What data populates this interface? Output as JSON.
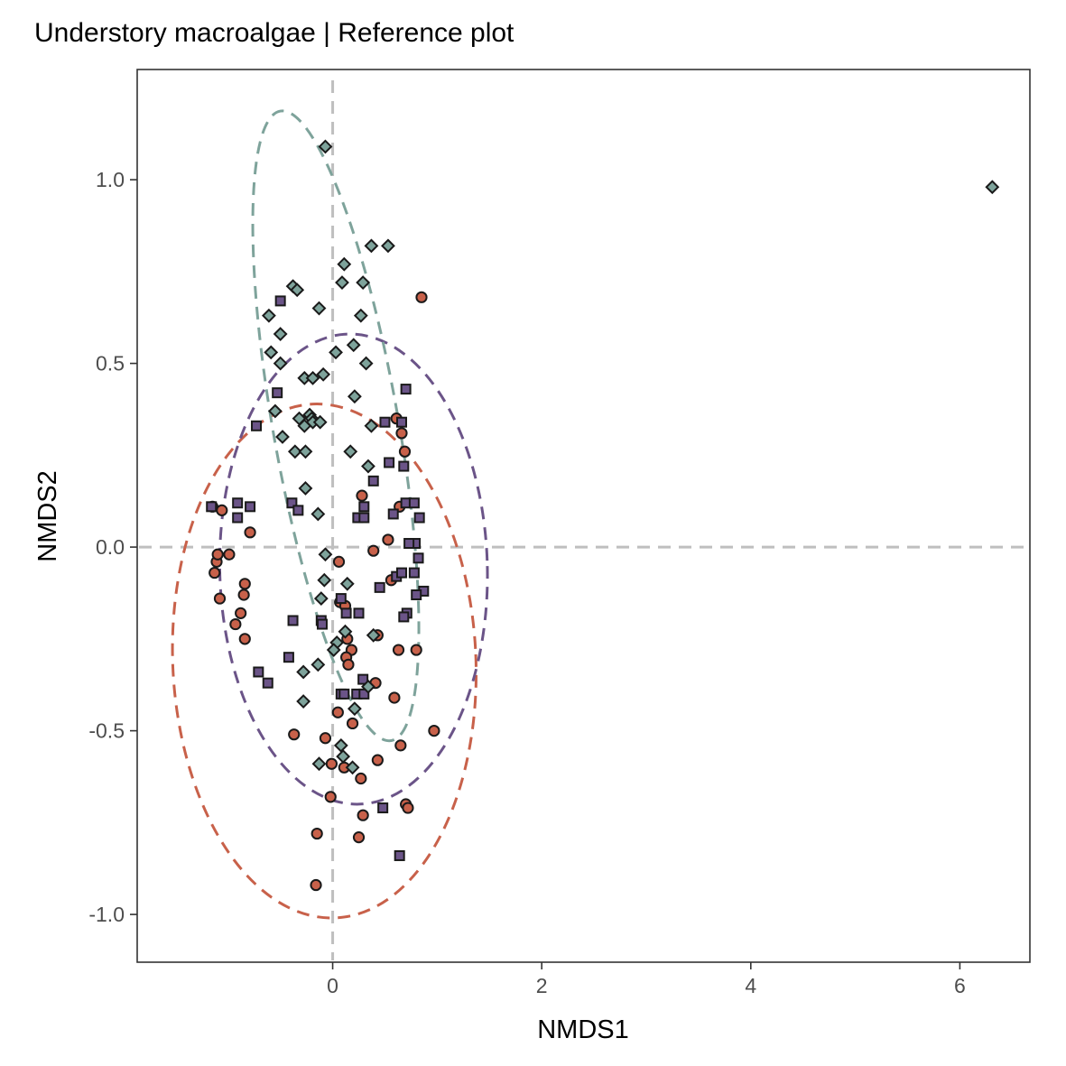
{
  "chart_data": {
    "type": "scatter",
    "title": "Understory macroalgae | Reference plot",
    "xlabel": "NMDS1",
    "ylabel": "NMDS2",
    "xlim": [
      -1.87,
      6.67
    ],
    "ylim": [
      -1.13,
      1.3
    ],
    "xticks": [
      0,
      2,
      4,
      6
    ],
    "yticks": [
      -1.0,
      -0.5,
      0.0,
      0.5,
      1.0
    ],
    "xtick_labels": [
      "0",
      "2",
      "4",
      "6"
    ],
    "ytick_labels": [
      "-1.0",
      "-0.5",
      "0.0",
      "0.5",
      "1.0"
    ],
    "reference_lines": {
      "x": 0,
      "y": 0,
      "style": "dashed",
      "color": "#bfbfbf"
    },
    "grid": false,
    "legend": "none",
    "series": [
      {
        "color": "#c8614a",
        "marker": "circle",
        "points": [
          [
            -1.15,
            0.11
          ],
          [
            -1.11,
            -0.04
          ],
          [
            -1.13,
            -0.07
          ],
          [
            -1.06,
            0.1
          ],
          [
            -1.1,
            -0.02
          ],
          [
            -0.99,
            -0.02
          ],
          [
            -1.08,
            -0.14
          ],
          [
            -0.79,
            0.04
          ],
          [
            -0.84,
            -0.1
          ],
          [
            -0.85,
            -0.13
          ],
          [
            -0.88,
            -0.18
          ],
          [
            -0.93,
            -0.21
          ],
          [
            -0.84,
            -0.25
          ],
          [
            0.85,
            0.68
          ],
          [
            0.61,
            0.35
          ],
          [
            0.66,
            0.31
          ],
          [
            0.69,
            0.26
          ],
          [
            0.07,
            -0.15
          ],
          [
            0.18,
            -0.28
          ],
          [
            0.06,
            -0.04
          ],
          [
            0.28,
            0.14
          ],
          [
            0.39,
            -0.01
          ],
          [
            0.53,
            0.02
          ],
          [
            0.64,
            0.11
          ],
          [
            0.56,
            -0.09
          ],
          [
            0.43,
            -0.24
          ],
          [
            0.41,
            -0.37
          ],
          [
            0.63,
            -0.28
          ],
          [
            0.8,
            -0.28
          ],
          [
            0.12,
            -0.16
          ],
          [
            0.14,
            -0.25
          ],
          [
            0.13,
            -0.3
          ],
          [
            0.15,
            -0.32
          ],
          [
            0.05,
            -0.45
          ],
          [
            0.19,
            -0.48
          ],
          [
            0.59,
            -0.41
          ],
          [
            0.97,
            -0.5
          ],
          [
            -0.37,
            -0.51
          ],
          [
            -0.07,
            -0.52
          ],
          [
            -0.01,
            -0.59
          ],
          [
            0.11,
            -0.6
          ],
          [
            0.43,
            -0.58
          ],
          [
            0.65,
            -0.54
          ],
          [
            0.27,
            -0.63
          ],
          [
            0.7,
            -0.7
          ],
          [
            0.72,
            -0.71
          ],
          [
            0.29,
            -0.73
          ],
          [
            -0.15,
            -0.78
          ],
          [
            0.25,
            -0.79
          ],
          [
            -0.16,
            -0.92
          ],
          [
            -0.02,
            -0.68
          ]
        ]
      },
      {
        "color": "#6b5488",
        "marker": "square",
        "points": [
          [
            -0.5,
            0.67
          ],
          [
            -0.53,
            0.42
          ],
          [
            -0.73,
            0.33
          ],
          [
            -1.16,
            0.11
          ],
          [
            -0.91,
            0.12
          ],
          [
            -0.79,
            0.11
          ],
          [
            -0.91,
            0.08
          ],
          [
            -0.39,
            0.12
          ],
          [
            -0.33,
            0.1
          ],
          [
            0.7,
            0.43
          ],
          [
            0.5,
            0.34
          ],
          [
            0.66,
            0.34
          ],
          [
            0.54,
            0.23
          ],
          [
            0.68,
            0.22
          ],
          [
            0.39,
            0.18
          ],
          [
            0.3,
            0.11
          ],
          [
            0.24,
            0.08
          ],
          [
            0.3,
            0.08
          ],
          [
            0.58,
            0.09
          ],
          [
            0.7,
            0.12
          ],
          [
            0.78,
            0.12
          ],
          [
            0.83,
            0.08
          ],
          [
            0.79,
            0.01
          ],
          [
            0.73,
            0.01
          ],
          [
            0.82,
            -0.03
          ],
          [
            0.78,
            -0.07
          ],
          [
            0.61,
            -0.08
          ],
          [
            0.66,
            -0.07
          ],
          [
            0.87,
            -0.12
          ],
          [
            0.8,
            -0.13
          ],
          [
            0.45,
            -0.11
          ],
          [
            0.08,
            -0.14
          ],
          [
            0.13,
            -0.18
          ],
          [
            0.25,
            -0.18
          ],
          [
            0.71,
            -0.18
          ],
          [
            0.68,
            -0.19
          ],
          [
            -0.38,
            -0.2
          ],
          [
            -0.11,
            -0.2
          ],
          [
            -0.1,
            -0.21
          ],
          [
            -0.42,
            -0.3
          ],
          [
            -0.71,
            -0.34
          ],
          [
            -0.62,
            -0.37
          ],
          [
            0.29,
            -0.36
          ],
          [
            0.08,
            -0.4
          ],
          [
            0.11,
            -0.4
          ],
          [
            0.23,
            -0.4
          ],
          [
            0.3,
            -0.4
          ],
          [
            0.48,
            -0.71
          ],
          [
            0.64,
            -0.84
          ]
        ]
      },
      {
        "color": "#7ea39b",
        "marker": "diamond",
        "points": [
          [
            -0.07,
            1.09
          ],
          [
            6.31,
            0.98
          ],
          [
            0.37,
            0.82
          ],
          [
            0.53,
            0.82
          ],
          [
            0.11,
            0.77
          ],
          [
            0.09,
            0.72
          ],
          [
            0.29,
            0.72
          ],
          [
            -0.38,
            0.71
          ],
          [
            -0.34,
            0.7
          ],
          [
            0.27,
            0.63
          ],
          [
            -0.13,
            0.65
          ],
          [
            -0.61,
            0.63
          ],
          [
            -0.5,
            0.58
          ],
          [
            -0.59,
            0.53
          ],
          [
            -0.5,
            0.5
          ],
          [
            0.03,
            0.53
          ],
          [
            0.2,
            0.55
          ],
          [
            0.32,
            0.5
          ],
          [
            -0.27,
            0.46
          ],
          [
            -0.19,
            0.46
          ],
          [
            -0.09,
            0.47
          ],
          [
            0.21,
            0.41
          ],
          [
            -0.55,
            0.37
          ],
          [
            -0.32,
            0.35
          ],
          [
            -0.22,
            0.36
          ],
          [
            -0.2,
            0.35
          ],
          [
            -0.27,
            0.33
          ],
          [
            -0.19,
            0.34
          ],
          [
            -0.12,
            0.34
          ],
          [
            -0.48,
            0.3
          ],
          [
            -0.36,
            0.26
          ],
          [
            -0.26,
            0.26
          ],
          [
            0.17,
            0.26
          ],
          [
            0.37,
            0.33
          ],
          [
            0.34,
            0.22
          ],
          [
            -0.26,
            0.16
          ],
          [
            -0.14,
            0.09
          ],
          [
            -0.07,
            -0.02
          ],
          [
            -0.08,
            -0.09
          ],
          [
            0.14,
            -0.1
          ],
          [
            -0.11,
            -0.14
          ],
          [
            0.12,
            -0.23
          ],
          [
            0.04,
            -0.26
          ],
          [
            0.01,
            -0.28
          ],
          [
            0.39,
            -0.24
          ],
          [
            -0.14,
            -0.32
          ],
          [
            -0.28,
            -0.34
          ],
          [
            0.34,
            -0.38
          ],
          [
            -0.28,
            -0.42
          ],
          [
            0.08,
            -0.54
          ],
          [
            -0.13,
            -0.59
          ],
          [
            0.1,
            -0.57
          ],
          [
            0.19,
            -0.6
          ],
          [
            0.21,
            -0.44
          ]
        ]
      }
    ],
    "ellipses": [
      {
        "color": "#c8614a",
        "center": [
          -0.08,
          -0.31
        ],
        "rx": 1.45,
        "ry": 0.7,
        "rotate_deg": -2.5
      },
      {
        "color": "#6b5488",
        "center": [
          0.2,
          -0.06
        ],
        "rx": 1.28,
        "ry": 0.64,
        "rotate_deg": -1.3
      },
      {
        "color": "#7ea39b",
        "center": [
          0.03,
          0.33
        ],
        "rx": 0.6,
        "ry": 0.87,
        "rotate_deg": -10
      }
    ]
  }
}
